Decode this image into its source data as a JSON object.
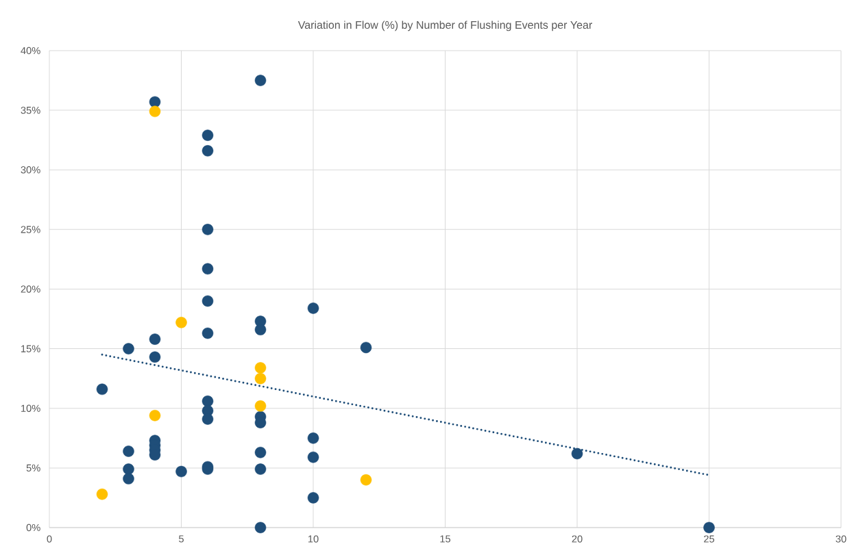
{
  "chart_data": {
    "type": "scatter",
    "title": "Variation in Flow (%) by Number of Flushing Events per Year",
    "xlim": [
      0,
      30
    ],
    "xticks": [
      0,
      5,
      10,
      15,
      20,
      25,
      30
    ],
    "ylim": [
      0,
      40
    ],
    "yticks": [
      {
        "value": 0,
        "label": "0%"
      },
      {
        "value": 5,
        "label": "5%"
      },
      {
        "value": 10,
        "label": "10%"
      },
      {
        "value": 15,
        "label": "15%"
      },
      {
        "value": 20,
        "label": "20%"
      },
      {
        "value": 25,
        "label": "25%"
      },
      {
        "value": 30,
        "label": "30%"
      },
      {
        "value": 35,
        "label": "35%"
      },
      {
        "value": 40,
        "label": "40%"
      }
    ],
    "grid": true,
    "series": [
      {
        "color": "#1f4e79",
        "marker": "circle",
        "x": [
          2,
          3,
          3,
          3,
          3,
          4,
          4,
          4,
          4,
          4,
          4,
          4,
          5,
          6,
          6,
          6,
          6,
          6,
          6,
          6,
          6,
          6,
          6,
          6,
          8,
          8,
          8,
          8,
          8,
          8,
          8,
          8,
          10,
          10,
          10,
          10,
          12,
          20,
          25
        ],
        "values": [
          11.6,
          15.0,
          6.4,
          4.9,
          4.1,
          35.7,
          15.8,
          14.3,
          7.3,
          6.9,
          6.5,
          6.1,
          4.7,
          32.9,
          31.6,
          25.0,
          21.7,
          19.0,
          16.3,
          10.6,
          9.8,
          9.1,
          5.1,
          4.9,
          37.5,
          17.3,
          16.6,
          9.3,
          8.8,
          6.3,
          4.9,
          0,
          18.4,
          7.5,
          5.9,
          2.5,
          15.1,
          6.2,
          0
        ]
      },
      {
        "color": "#ffc000",
        "marker": "circle",
        "x": [
          2,
          4,
          4,
          5,
          8,
          8,
          8,
          12
        ],
        "values": [
          2.8,
          34.9,
          9.4,
          17.2,
          13.4,
          12.5,
          10.2,
          4.0
        ]
      },
      {
        "type": "line",
        "color": "#1f4e79",
        "line_style": "dotted",
        "marker": "none",
        "x": [
          2,
          25
        ],
        "values": [
          14.5,
          4.4
        ]
      }
    ]
  }
}
